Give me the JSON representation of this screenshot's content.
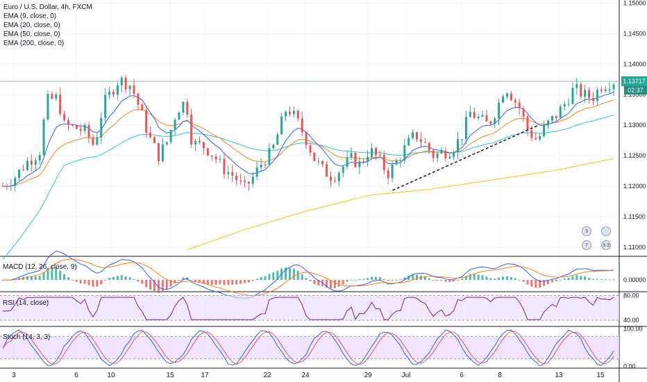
{
  "legend": {
    "symbol": "Euro / U.S. Dollar, 4h, FXCM",
    "ema_lines": [
      "EMA (9, close, 0)",
      "EMA (20, close, 0)",
      "EMA (50, close, 0)",
      "EMA (200, close, 0)"
    ]
  },
  "price_badge": "1.13717",
  "countdown_badge": "02:37",
  "panes": {
    "macd": "MACD (12, 26, close, 9)",
    "rsi": "RSI (14, close)",
    "stoch": "Stoch (14, 3, 3)"
  },
  "events": [
    "3",
    "",
    "7",
    "3 3"
  ],
  "colors": {
    "up": "#26a69a",
    "down": "#ef5350",
    "ema9": "#2962ff",
    "ema20": "#ff7f0e",
    "ema50": "#26c6da",
    "ema200": "#ffc107",
    "macd": "#2962ff",
    "signal": "#ff7f0e",
    "rsi": "#7b1fa2",
    "stoch_k": "#2962ff",
    "stoch_d": "#ef5350",
    "band": "#e9d8ff"
  },
  "chart_data": [
    {
      "type": "candlestick",
      "title": "Euro / U.S. Dollar, 4h, FXCM",
      "x_ticks": [
        "3",
        "6",
        "10",
        "15",
        "17",
        "22",
        "24",
        "29",
        "Jul",
        "6",
        "8",
        "13",
        "15"
      ],
      "y_ticks": [
        "1.15000",
        "1.14500",
        "1.14000",
        "1.13500",
        "1.13000",
        "1.12500",
        "1.12000",
        "1.11500",
        "1.11000"
      ],
      "ylim": [
        1.1085,
        1.1505
      ],
      "horizontal_line": 1.13717,
      "trendline": [
        [
          1.1193,
          0.634
        ],
        [
          1.13,
          0.87
        ]
      ],
      "anchors_close": [
        [
          0,
          1.12
        ],
        [
          0.02,
          1.1215
        ],
        [
          0.04,
          1.124
        ],
        [
          0.06,
          1.1255
        ],
        [
          0.072,
          1.134
        ],
        [
          0.09,
          1.1345
        ],
        [
          0.1,
          1.13
        ],
        [
          0.12,
          1.1295
        ],
        [
          0.135,
          1.129
        ],
        [
          0.15,
          1.1265
        ],
        [
          0.165,
          1.1335
        ],
        [
          0.175,
          1.135
        ],
        [
          0.19,
          1.1375
        ],
        [
          0.21,
          1.1365
        ],
        [
          0.225,
          1.1325
        ],
        [
          0.24,
          1.128
        ],
        [
          0.255,
          1.125
        ],
        [
          0.27,
          1.1275
        ],
        [
          0.285,
          1.1325
        ],
        [
          0.3,
          1.134
        ],
        [
          0.31,
          1.127
        ],
        [
          0.33,
          1.1265
        ],
        [
          0.345,
          1.125
        ],
        [
          0.36,
          1.123
        ],
        [
          0.38,
          1.1215
        ],
        [
          0.395,
          1.1195
        ],
        [
          0.41,
          1.1215
        ],
        [
          0.425,
          1.124
        ],
        [
          0.44,
          1.1255
        ],
        [
          0.455,
          1.13
        ],
        [
          0.465,
          1.133
        ],
        [
          0.48,
          1.131
        ],
        [
          0.495,
          1.128
        ],
        [
          0.51,
          1.1245
        ],
        [
          0.525,
          1.1225
        ],
        [
          0.54,
          1.1215
        ],
        [
          0.555,
          1.123
        ],
        [
          0.57,
          1.1245
        ],
        [
          0.585,
          1.1235
        ],
        [
          0.6,
          1.126
        ],
        [
          0.615,
          1.1245
        ],
        [
          0.63,
          1.122
        ],
        [
          0.645,
          1.124
        ],
        [
          0.66,
          1.1265
        ],
        [
          0.675,
          1.1285
        ],
        [
          0.69,
          1.127
        ],
        [
          0.705,
          1.125
        ],
        [
          0.72,
          1.1255
        ],
        [
          0.735,
          1.126
        ],
        [
          0.75,
          1.128
        ],
        [
          0.765,
          1.132
        ],
        [
          0.78,
          1.131
        ],
        [
          0.795,
          1.13
        ],
        [
          0.81,
          1.133
        ],
        [
          0.822,
          1.1365
        ],
        [
          0.835,
          1.1345
        ],
        [
          0.845,
          1.133
        ],
        [
          0.86,
          1.129
        ],
        [
          0.875,
          1.1275
        ],
        [
          0.89,
          1.13
        ],
        [
          0.905,
          1.1315
        ],
        [
          0.92,
          1.1335
        ],
        [
          0.935,
          1.136
        ],
        [
          0.95,
          1.135
        ],
        [
          0.965,
          1.1345
        ],
        [
          0.98,
          1.1365
        ],
        [
          1.0,
          1.1372
        ]
      ],
      "ema200": [
        [
          0.3,
          1.1095
        ],
        [
          0.4,
          1.113
        ],
        [
          0.5,
          1.116
        ],
        [
          0.6,
          1.1185
        ],
        [
          0.7,
          1.1195
        ],
        [
          0.8,
          1.121
        ],
        [
          0.9,
          1.1225
        ],
        [
          1.0,
          1.1245
        ]
      ]
    },
    {
      "type": "bar",
      "title": "MACD (12, 26, close, 9)",
      "y_ticks": [
        "0.00000"
      ],
      "ylim": [
        -0.002,
        0.002
      ]
    },
    {
      "type": "line",
      "title": "RSI (14, close)",
      "y_ticks": [
        "80.00",
        "40.00"
      ],
      "ylim": [
        30,
        85
      ],
      "band": [
        40,
        80
      ]
    },
    {
      "type": "line",
      "title": "Stoch (14, 3, 3)",
      "y_ticks": [
        "100.00",
        "0.00"
      ],
      "ylim": [
        -5,
        105
      ],
      "band": [
        20,
        80
      ]
    }
  ]
}
